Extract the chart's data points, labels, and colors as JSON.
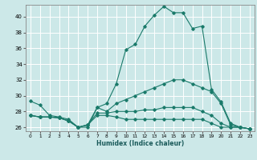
{
  "title": "",
  "xlabel": "Humidex (Indice chaleur)",
  "ylabel": "",
  "bg_color": "#cce8e8",
  "line_color": "#1a7a6a",
  "grid_color": "#ffffff",
  "xlim": [
    -0.5,
    23.5
  ],
  "ylim": [
    25.5,
    41.5
  ],
  "yticks": [
    26,
    28,
    30,
    32,
    34,
    36,
    38,
    40
  ],
  "xticks": [
    0,
    1,
    2,
    3,
    4,
    5,
    6,
    7,
    8,
    9,
    10,
    11,
    12,
    13,
    14,
    15,
    16,
    17,
    18,
    19,
    20,
    21,
    22,
    23
  ],
  "series": [
    [
      29.3,
      28.8,
      27.5,
      27.3,
      27.0,
      26.0,
      26.0,
      28.5,
      29.0,
      31.5,
      35.8,
      36.5,
      38.8,
      40.2,
      41.3,
      40.5,
      40.5,
      38.5,
      38.8,
      30.8,
      29.2,
      26.5,
      26.0,
      25.8
    ],
    [
      27.5,
      27.3,
      27.3,
      27.2,
      26.8,
      26.0,
      26.3,
      28.5,
      28.0,
      29.0,
      29.5,
      30.0,
      30.5,
      31.0,
      31.5,
      32.0,
      32.0,
      31.5,
      31.0,
      30.5,
      29.0,
      26.3,
      26.0,
      25.8
    ],
    [
      27.5,
      27.3,
      27.3,
      27.2,
      26.8,
      26.0,
      26.3,
      27.8,
      27.8,
      28.0,
      28.0,
      28.0,
      28.2,
      28.2,
      28.5,
      28.5,
      28.5,
      28.5,
      28.0,
      27.5,
      26.5,
      26.0,
      26.0,
      25.8
    ],
    [
      27.5,
      27.3,
      27.3,
      27.2,
      26.8,
      26.0,
      26.3,
      27.5,
      27.5,
      27.3,
      27.0,
      27.0,
      27.0,
      27.0,
      27.0,
      27.0,
      27.0,
      27.0,
      27.0,
      26.5,
      26.0,
      26.0,
      26.0,
      25.8
    ]
  ]
}
